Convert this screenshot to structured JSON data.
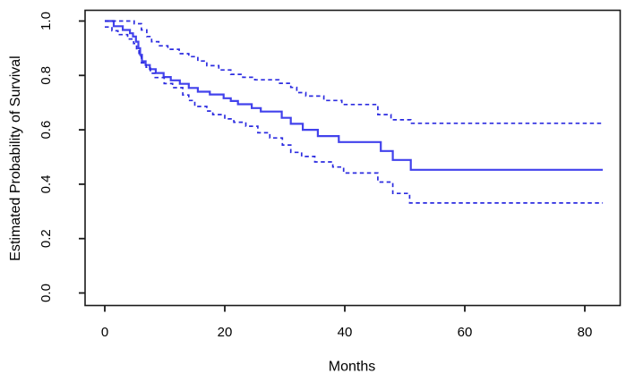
{
  "figure": {
    "background": "#ffffff",
    "axis_color": "#1a1a1a",
    "text_color": "#000000"
  },
  "chart_data": {
    "type": "line",
    "subtype": "kaplan-meier-survival-step-curve",
    "title": "",
    "xlabel": "Months",
    "ylabel": "Estimated Probability of Survival",
    "x_ticks": [
      0,
      20,
      40,
      60,
      80
    ],
    "y_tick_labels": [
      "0.0",
      "0.2",
      "0.4",
      "0.6",
      "0.8",
      "1.0"
    ],
    "y_tick_values": [
      0.0,
      0.2,
      0.4,
      0.6,
      0.8,
      1.0
    ],
    "xlim_months": [
      0,
      83
    ],
    "ylim": [
      0.0,
      1.0
    ],
    "grid": false,
    "legend": "none",
    "series": [
      {
        "name": "Estimated survival probability",
        "style": "solid",
        "color": "#4242ec",
        "points": [
          [
            0,
            1.0
          ],
          [
            1.5,
            0.981
          ],
          [
            3,
            0.967
          ],
          [
            4.2,
            0.955
          ],
          [
            4.7,
            0.943
          ],
          [
            5.2,
            0.924
          ],
          [
            5.6,
            0.9
          ],
          [
            5.9,
            0.876
          ],
          [
            6.2,
            0.852
          ],
          [
            6.8,
            0.838
          ],
          [
            7.5,
            0.823
          ],
          [
            8.5,
            0.809
          ],
          [
            9.8,
            0.794
          ],
          [
            11,
            0.782
          ],
          [
            12.5,
            0.769
          ],
          [
            14,
            0.754
          ],
          [
            15.5,
            0.74
          ],
          [
            17.5,
            0.73
          ],
          [
            19.8,
            0.716
          ],
          [
            21,
            0.706
          ],
          [
            22.2,
            0.694
          ],
          [
            24.5,
            0.68
          ],
          [
            26,
            0.667
          ],
          [
            29.5,
            0.644
          ],
          [
            31,
            0.622
          ],
          [
            33,
            0.6
          ],
          [
            35.5,
            0.577
          ],
          [
            39,
            0.555
          ],
          [
            46,
            0.522
          ],
          [
            48,
            0.489
          ],
          [
            51,
            0.453
          ],
          [
            83,
            0.453
          ]
        ]
      },
      {
        "name": "Upper 95% confidence bound",
        "style": "dashed",
        "color": "#2c2ce0",
        "points": [
          [
            0,
            1.0
          ],
          [
            4.9,
            0.99
          ],
          [
            6.1,
            0.967
          ],
          [
            7,
            0.943
          ],
          [
            7.8,
            0.924
          ],
          [
            9,
            0.909
          ],
          [
            10.5,
            0.896
          ],
          [
            12.4,
            0.88
          ],
          [
            14,
            0.869
          ],
          [
            15.5,
            0.853
          ],
          [
            17,
            0.836
          ],
          [
            19,
            0.82
          ],
          [
            21,
            0.804
          ],
          [
            23,
            0.793
          ],
          [
            25,
            0.784
          ],
          [
            29,
            0.771
          ],
          [
            31,
            0.756
          ],
          [
            32,
            0.737
          ],
          [
            33.5,
            0.724
          ],
          [
            36.5,
            0.708
          ],
          [
            39.5,
            0.693
          ],
          [
            45.5,
            0.656
          ],
          [
            47.7,
            0.637
          ],
          [
            51,
            0.624
          ],
          [
            83,
            0.624
          ]
        ]
      },
      {
        "name": "Lower 95% confidence bound",
        "style": "dashed",
        "color": "#2c2ce0",
        "points": [
          [
            0,
            0.978
          ],
          [
            1.2,
            0.964
          ],
          [
            2.2,
            0.95
          ],
          [
            3.8,
            0.934
          ],
          [
            4.8,
            0.917
          ],
          [
            5.3,
            0.895
          ],
          [
            5.7,
            0.871
          ],
          [
            6.1,
            0.846
          ],
          [
            6.9,
            0.83
          ],
          [
            7.6,
            0.808
          ],
          [
            8.4,
            0.792
          ],
          [
            9.9,
            0.77
          ],
          [
            11.3,
            0.755
          ],
          [
            13,
            0.728
          ],
          [
            14,
            0.708
          ],
          [
            15,
            0.686
          ],
          [
            17,
            0.669
          ],
          [
            18,
            0.656
          ],
          [
            20,
            0.64
          ],
          [
            21.5,
            0.628
          ],
          [
            23.5,
            0.613
          ],
          [
            25.5,
            0.589
          ],
          [
            27.5,
            0.57
          ],
          [
            29.6,
            0.544
          ],
          [
            31,
            0.517
          ],
          [
            32.8,
            0.502
          ],
          [
            35,
            0.482
          ],
          [
            38,
            0.463
          ],
          [
            39.8,
            0.441
          ],
          [
            45.5,
            0.408
          ],
          [
            48,
            0.366
          ],
          [
            50.8,
            0.331
          ],
          [
            83,
            0.331
          ]
        ]
      }
    ]
  }
}
